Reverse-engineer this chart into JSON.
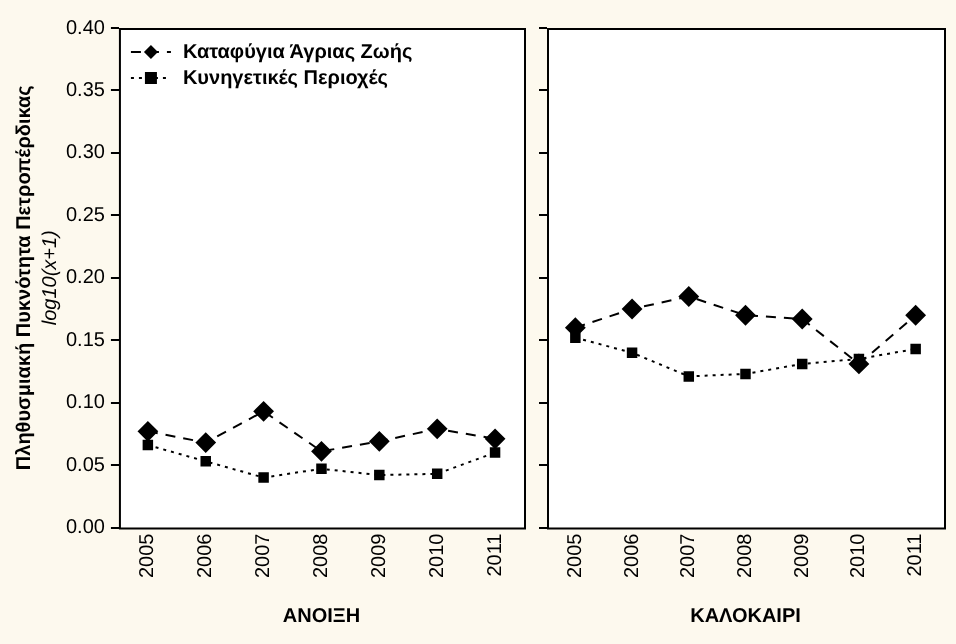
{
  "chart_data": [
    {
      "type": "line",
      "categories": [
        "2005",
        "2006",
        "2007",
        "2008",
        "2009",
        "2010",
        "2011"
      ],
      "xlabel": "ΑΝΟΙΞΗ",
      "ylabel": "Πληθυσμιακή Πυκνότητα Πετροπέρδικας\nlog10(x+1)",
      "ylim": [
        0,
        0.4
      ],
      "yticks": [
        {
          "value": 0,
          "label": "0.00"
        },
        0.05,
        {
          "value": 0.1,
          "label": "0.10"
        },
        0.15,
        {
          "value": 0.2,
          "label": "0.20"
        },
        0.25,
        {
          "value": 0.3,
          "label": "0.30"
        },
        0.35,
        {
          "value": 0.4,
          "label": "0.40"
        }
      ],
      "grid": false,
      "legend": "top left",
      "series": [
        {
          "name": "Καταφύγια Άγριας Ζωής",
          "color": "#000000",
          "marker": "diamond",
          "line_style": "dashed",
          "values": [
            0.077,
            0.068,
            0.093,
            0.061,
            0.069,
            0.079,
            0.071
          ]
        },
        {
          "name": "Κυνηγετικές Περιοχές",
          "color": "#000000",
          "marker": "square",
          "line_style": "dotted",
          "values": [
            0.066,
            0.053,
            0.04,
            0.047,
            0.042,
            0.043,
            0.06
          ]
        }
      ]
    },
    {
      "type": "line",
      "categories": [
        "2005",
        "2006",
        "2007",
        "2008",
        "2009",
        "2010",
        "2011"
      ],
      "xlabel": "ΚΑΛΟΚΑΙΡΙ",
      "ylim": [
        0,
        0.4
      ],
      "yticks": [
        0,
        0.05,
        0.1,
        0.15,
        0.2,
        0.25,
        0.3,
        0.35,
        0.4
      ],
      "grid": false,
      "tick_labels": "x",
      "series": [
        {
          "color": "#000000",
          "marker": "diamond",
          "line_style": "dashed",
          "values": [
            0.16,
            0.175,
            0.185,
            0.17,
            0.167,
            0.131,
            0.17
          ]
        },
        {
          "color": "#000000",
          "marker": "square",
          "line_style": "dotted",
          "values": [
            0.152,
            0.14,
            0.121,
            0.123,
            0.131,
            0.135,
            0.143
          ]
        }
      ]
    }
  ]
}
